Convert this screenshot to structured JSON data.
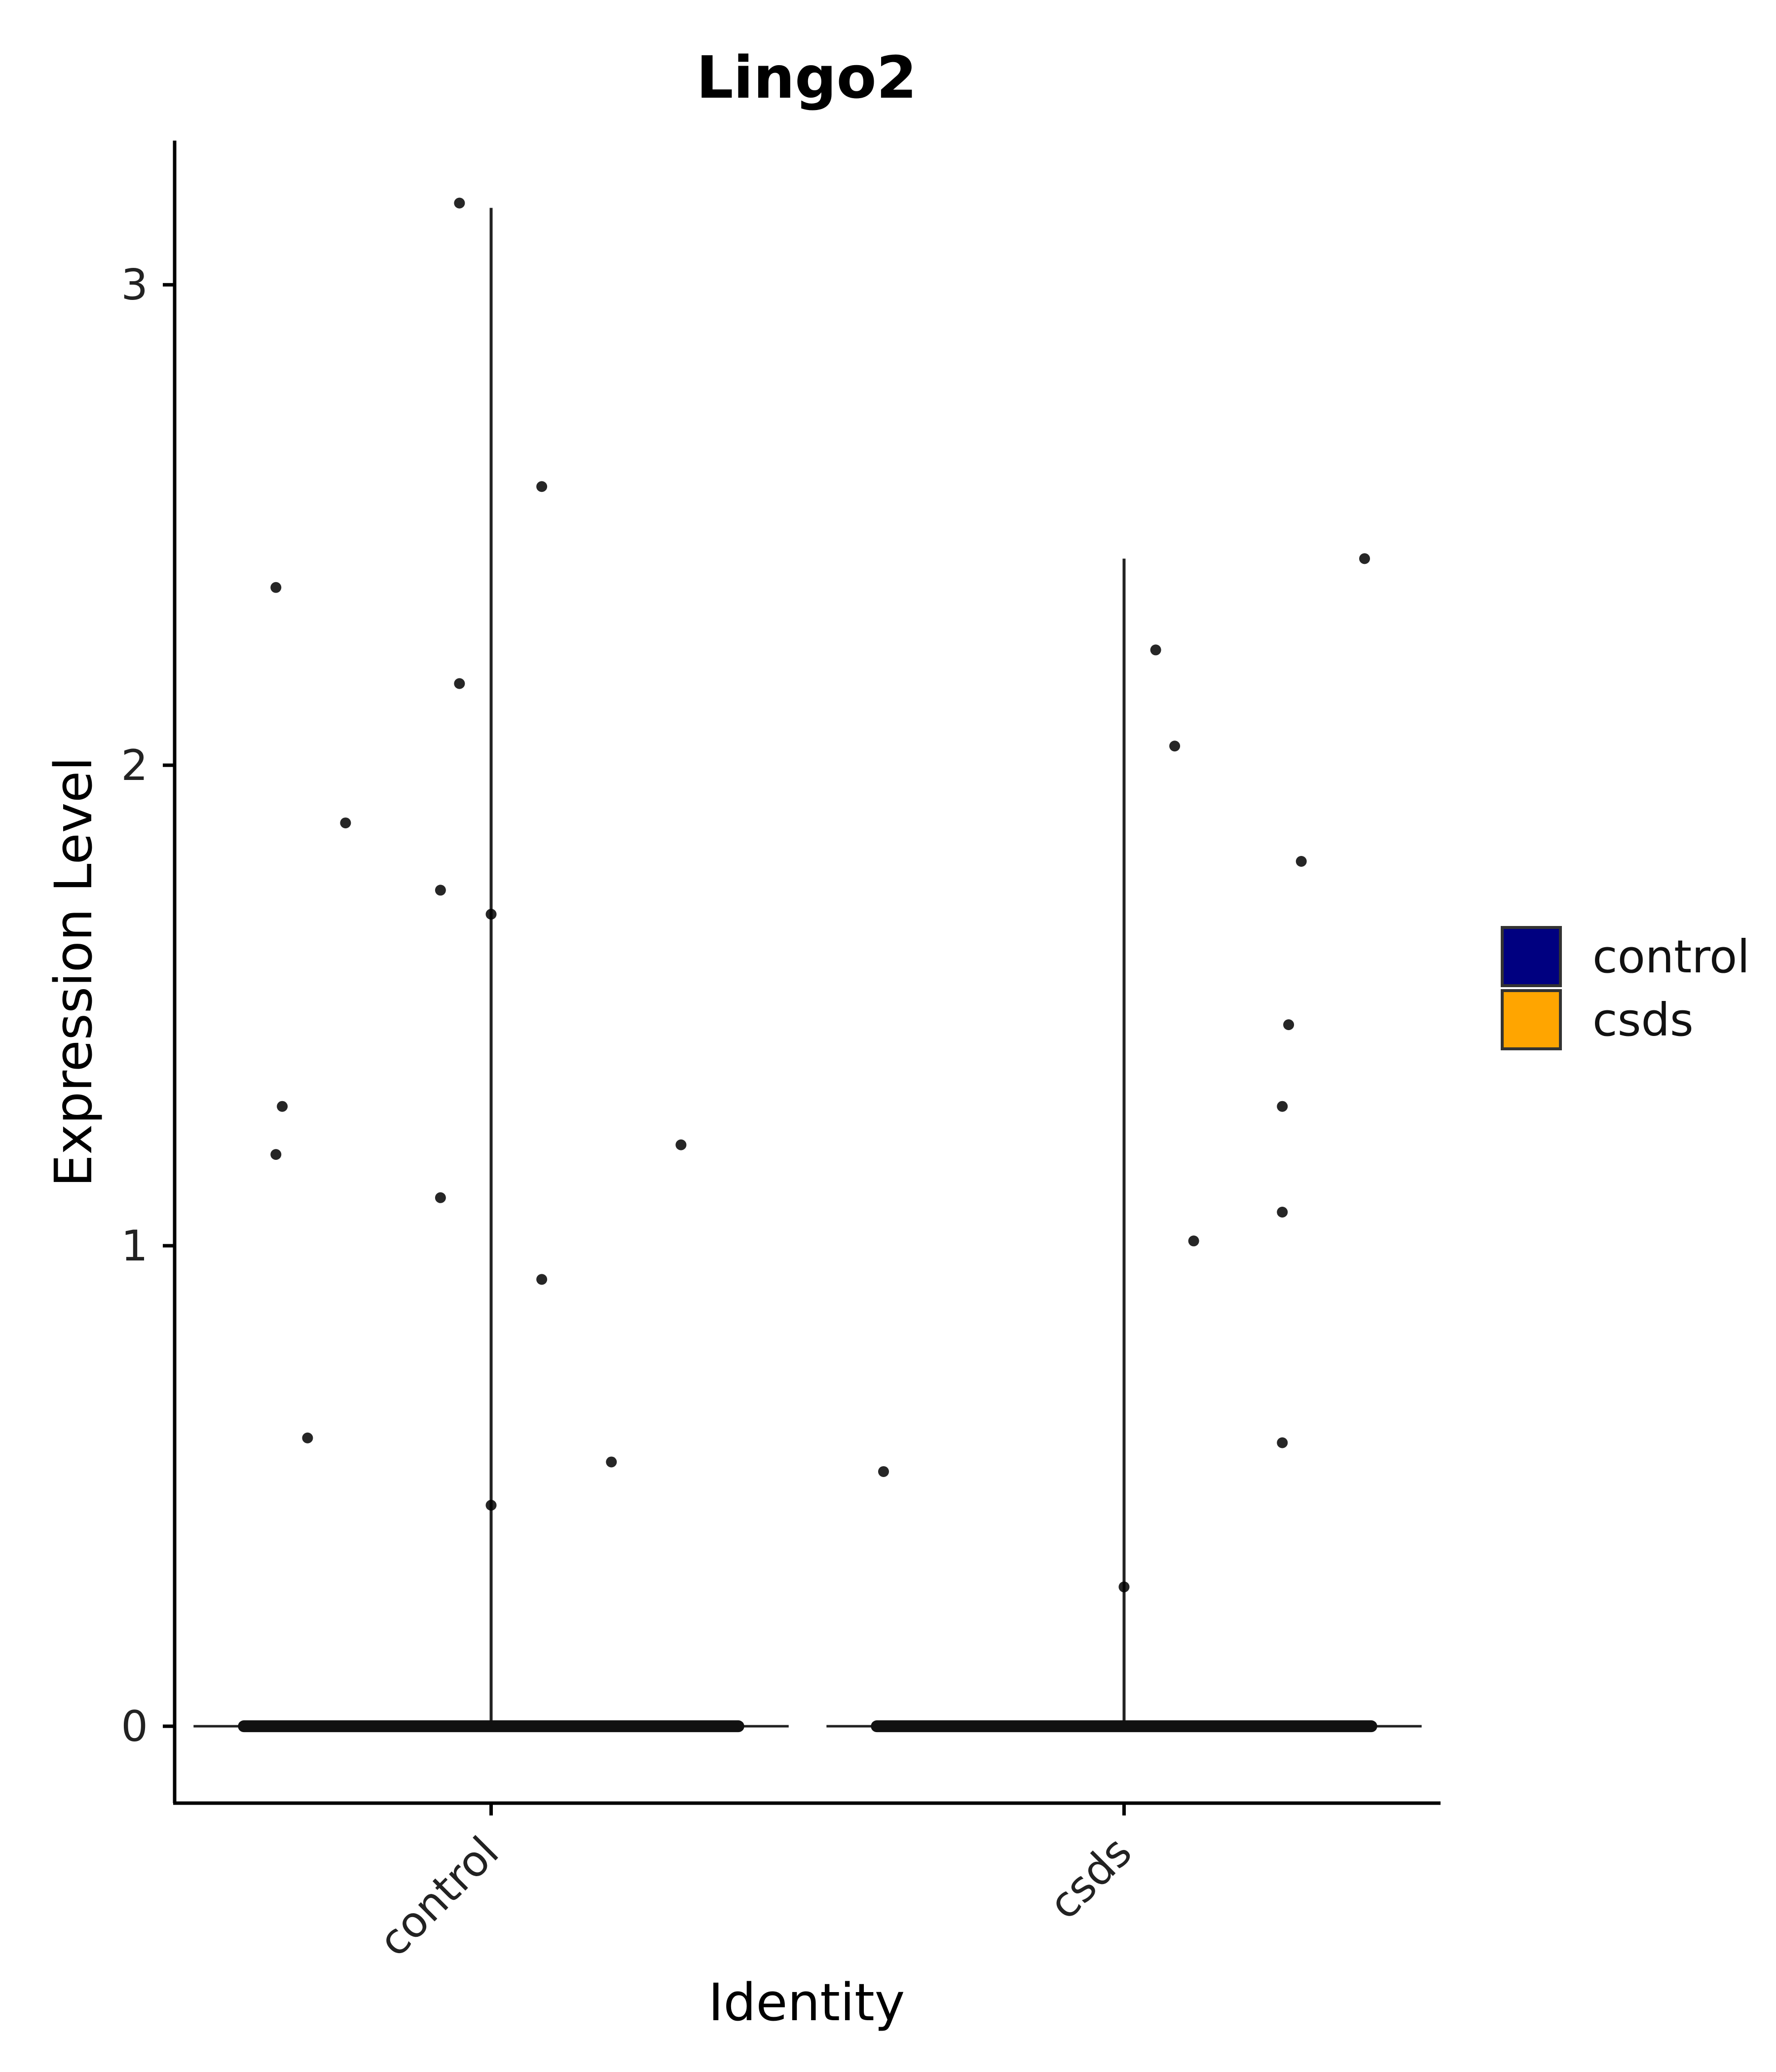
{
  "chart_data": {
    "type": "violin",
    "title": "Lingo2",
    "xlabel": "Identity",
    "ylabel": "Expression Level",
    "categories": [
      "control",
      "csds"
    ],
    "ylim": [
      -0.16,
      3.3
    ],
    "yticks": [
      0,
      1,
      2,
      3
    ],
    "grid": false,
    "legend": {
      "placement": "right",
      "entries": [
        {
          "label": "control",
          "color": "#000080"
        },
        {
          "label": "csds",
          "color": "#FFA500"
        }
      ]
    },
    "violin_max": {
      "control": 3.16,
      "csds": 2.43
    },
    "violin_mode": 0,
    "points": {
      "control": [
        {
          "x": -0.05,
          "y": 3.17
        },
        {
          "x": 0.08,
          "y": 2.58
        },
        {
          "x": -0.34,
          "y": 2.37
        },
        {
          "x": -0.05,
          "y": 2.17
        },
        {
          "x": -0.23,
          "y": 1.88
        },
        {
          "x": -0.08,
          "y": 1.74
        },
        {
          "x": 0.0,
          "y": 1.69
        },
        {
          "x": -0.33,
          "y": 1.29
        },
        {
          "x": -0.34,
          "y": 1.19
        },
        {
          "x": 0.3,
          "y": 1.21
        },
        {
          "x": -0.08,
          "y": 1.1
        },
        {
          "x": 0.08,
          "y": 0.93
        },
        {
          "x": -0.29,
          "y": 0.6
        },
        {
          "x": 0.19,
          "y": 0.55
        },
        {
          "x": 0.0,
          "y": 0.46
        }
      ],
      "csds": [
        {
          "x": 0.38,
          "y": 2.43
        },
        {
          "x": 0.05,
          "y": 2.24
        },
        {
          "x": 0.08,
          "y": 2.04
        },
        {
          "x": 0.28,
          "y": 1.8
        },
        {
          "x": 0.26,
          "y": 1.46
        },
        {
          "x": 0.25,
          "y": 1.29
        },
        {
          "x": 0.25,
          "y": 1.07
        },
        {
          "x": 0.11,
          "y": 1.01
        },
        {
          "x": 0.25,
          "y": 0.59
        },
        {
          "x": -0.38,
          "y": 0.53
        },
        {
          "x": 0.0,
          "y": 0.29
        }
      ]
    },
    "zero_band_halfwidth": 0.4
  }
}
